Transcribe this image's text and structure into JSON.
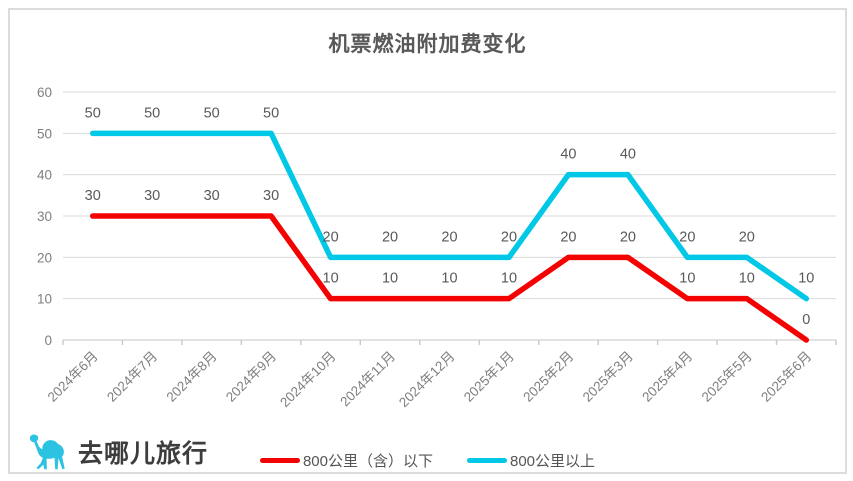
{
  "page": {
    "background": "#ffffff",
    "border_color": "#dcdcdc"
  },
  "branding": {
    "logo_text": "去哪儿旅行",
    "logo_icon": "camel-icon",
    "logo_color": "#2cc2e2",
    "text_color": "#3d3d3d"
  },
  "chart_data": {
    "type": "line",
    "title": "机票燃油附加费变化",
    "categories": [
      "2024年6月",
      "2024年7月",
      "2024年8月",
      "2024年9月",
      "2024年10月",
      "2024年11月",
      "2024年12月",
      "2025年1月",
      "2025年2月",
      "2025年3月",
      "2025年4月",
      "2025年5月",
      "2025年6月"
    ],
    "series": [
      {
        "name": "800公里（含）以下",
        "color": "#f40202",
        "values": [
          30,
          30,
          30,
          30,
          10,
          10,
          10,
          10,
          20,
          20,
          10,
          10,
          0
        ]
      },
      {
        "name": "800公里以上",
        "color": "#00c8e6",
        "values": [
          50,
          50,
          50,
          50,
          20,
          20,
          20,
          20,
          40,
          40,
          20,
          20,
          10
        ]
      }
    ],
    "xlabel": "",
    "ylabel": "",
    "ylim": [
      0,
      60
    ],
    "y_tick_step": 10,
    "grid": true,
    "data_labels": true,
    "legend_position": "bottom",
    "grid_color": "#d9d9d9",
    "tick_label_color": "#7f7f7f",
    "data_label_color": "#595959",
    "line_width": 5.5
  }
}
